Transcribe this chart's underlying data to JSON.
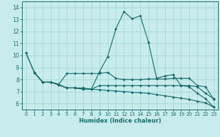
{
  "xlabel": "Humidex (Indice chaleur)",
  "background_color": "#c8ecec",
  "grid_color": "#a8d8d8",
  "line_color": "#1a6b6b",
  "xlim": [
    -0.5,
    23.5
  ],
  "ylim": [
    5.5,
    14.5
  ],
  "xticks": [
    0,
    1,
    2,
    3,
    4,
    5,
    6,
    7,
    8,
    9,
    10,
    11,
    12,
    13,
    14,
    15,
    16,
    17,
    18,
    19,
    20,
    21,
    22,
    23
  ],
  "yticks": [
    6,
    7,
    8,
    9,
    10,
    11,
    12,
    13,
    14
  ],
  "lines": [
    {
      "x": [
        0,
        1,
        2,
        3,
        4,
        5,
        6,
        7,
        8,
        9,
        10,
        11,
        12,
        13,
        14,
        15,
        16,
        17,
        18,
        19,
        20,
        21,
        22,
        23
      ],
      "y": [
        10.2,
        8.6,
        7.8,
        7.8,
        7.6,
        7.3,
        7.3,
        7.2,
        7.2,
        8.65,
        9.9,
        12.2,
        13.65,
        13.05,
        13.3,
        11.1,
        8.1,
        8.3,
        8.4,
        7.5,
        7.4,
        6.85,
        6.4,
        5.7
      ]
    },
    {
      "x": [
        1,
        2,
        3,
        4,
        5,
        6,
        7,
        8,
        9,
        10,
        11,
        12,
        13,
        14,
        15,
        16,
        17,
        18,
        19,
        20,
        21,
        22,
        23
      ],
      "y": [
        8.6,
        7.8,
        7.8,
        7.6,
        8.5,
        8.5,
        8.5,
        8.5,
        8.5,
        8.6,
        8.1,
        8.0,
        8.0,
        8.0,
        8.05,
        8.05,
        8.05,
        8.1,
        8.1,
        8.1,
        7.5,
        7.4,
        6.35
      ]
    },
    {
      "x": [
        1,
        2,
        3,
        4,
        5,
        6,
        7,
        8,
        9,
        10,
        11,
        12,
        13,
        14,
        15,
        16,
        17,
        18,
        19,
        20,
        21,
        22,
        23
      ],
      "y": [
        8.6,
        7.8,
        7.8,
        7.55,
        7.3,
        7.3,
        7.3,
        7.2,
        7.5,
        7.5,
        7.5,
        7.5,
        7.5,
        7.5,
        7.5,
        7.5,
        7.5,
        7.5,
        7.5,
        7.5,
        7.4,
        6.85,
        6.4
      ]
    },
    {
      "x": [
        0,
        1,
        2,
        3,
        4,
        5,
        6,
        7,
        8,
        9,
        10,
        11,
        12,
        13,
        14,
        15,
        16,
        17,
        18,
        19,
        20,
        21,
        22,
        23
      ],
      "y": [
        10.2,
        8.6,
        7.8,
        7.8,
        7.55,
        7.3,
        7.3,
        7.2,
        7.2,
        7.15,
        7.1,
        7.05,
        7.0,
        6.95,
        6.9,
        6.85,
        6.75,
        6.65,
        6.55,
        6.45,
        6.35,
        6.2,
        6.05,
        5.7
      ]
    }
  ]
}
